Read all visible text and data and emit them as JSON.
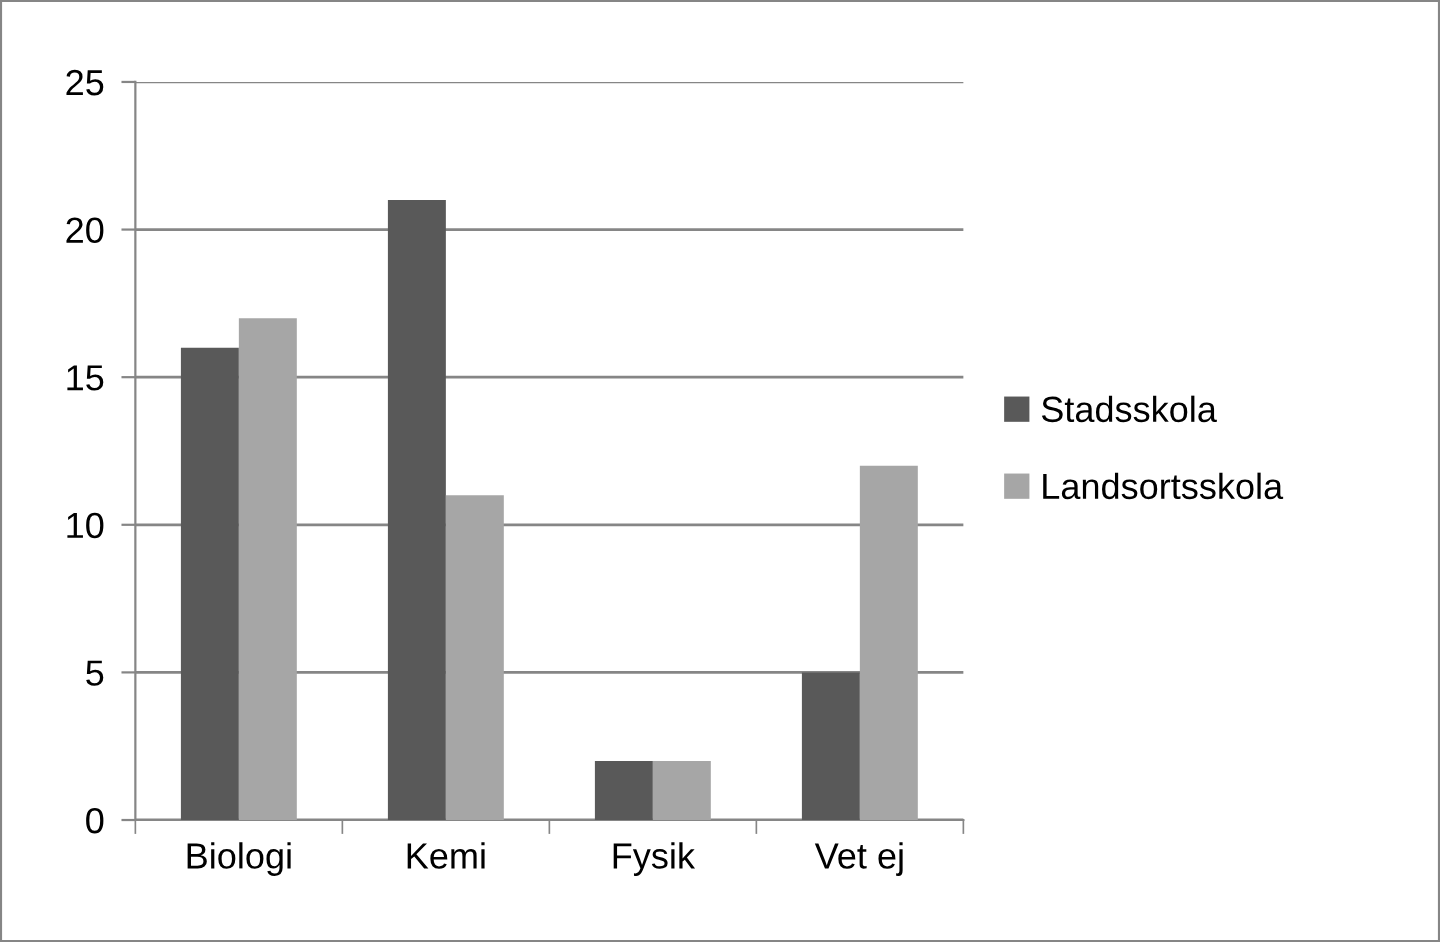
{
  "chart_data": {
    "type": "bar",
    "categories": [
      "Biologi",
      "Kemi",
      "Fysik",
      "Vet ej"
    ],
    "series": [
      {
        "name": "Stadsskola",
        "color": "#595959",
        "values": [
          16,
          21,
          2,
          5
        ]
      },
      {
        "name": "Landsortsskola",
        "color": "#a6a6a6",
        "values": [
          17,
          11,
          2,
          12
        ]
      }
    ],
    "ylim": [
      0,
      25
    ],
    "yticks": [
      0,
      5,
      10,
      15,
      20,
      25
    ],
    "grid": "y",
    "legend": "right"
  }
}
